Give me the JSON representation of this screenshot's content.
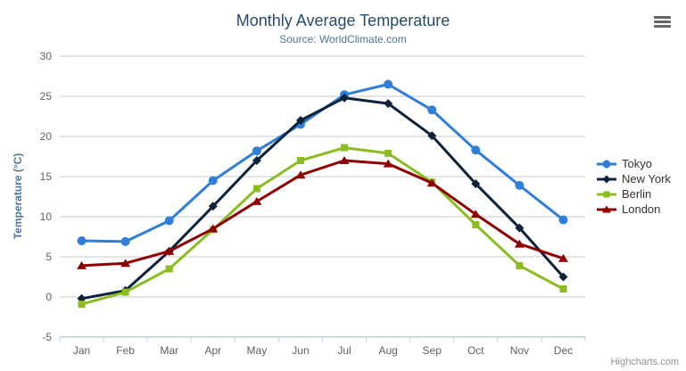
{
  "chart_data": {
    "type": "line",
    "title": "Monthly Average Temperature",
    "subtitle": "Source: WorldClimate.com",
    "ylabel": "Temperature (°C)",
    "xlabel": "",
    "ylim": [
      -5,
      30
    ],
    "yticks": [
      -5,
      0,
      5,
      10,
      15,
      20,
      25,
      30
    ],
    "grid": true,
    "legend_position": "right",
    "categories": [
      "Jan",
      "Feb",
      "Mar",
      "Apr",
      "May",
      "Jun",
      "Jul",
      "Aug",
      "Sep",
      "Oct",
      "Nov",
      "Dec"
    ],
    "series": [
      {
        "name": "Tokyo",
        "color": "#2f7ed8",
        "marker": "circle",
        "values": [
          7.0,
          6.9,
          9.5,
          14.5,
          18.2,
          21.5,
          25.2,
          26.5,
          23.3,
          18.3,
          13.9,
          9.6
        ]
      },
      {
        "name": "New York",
        "color": "#0d233a",
        "marker": "diamond",
        "values": [
          -0.2,
          0.8,
          5.7,
          11.3,
          17.0,
          22.0,
          24.8,
          24.1,
          20.1,
          14.1,
          8.6,
          2.5
        ]
      },
      {
        "name": "Berlin",
        "color": "#8bbc21",
        "marker": "square",
        "values": [
          -0.9,
          0.6,
          3.5,
          8.4,
          13.5,
          17.0,
          18.6,
          17.9,
          14.3,
          9.0,
          3.9,
          1.0
        ]
      },
      {
        "name": "London",
        "color": "#910000",
        "marker": "triangle",
        "values": [
          3.9,
          4.2,
          5.7,
          8.5,
          11.9,
          15.2,
          17.0,
          16.6,
          14.2,
          10.3,
          6.6,
          4.8
        ]
      }
    ],
    "credits_label": "Highcharts.com",
    "colors": {
      "title": "#274b6d",
      "subtitle": "#4d759e",
      "axis_label": "#606060",
      "axis_line": "#c0d0e0",
      "gridline": "#c8c8c8",
      "legend_text": "#333333",
      "credits": "#909090"
    },
    "export_button_icon": "hamburger-icon"
  }
}
